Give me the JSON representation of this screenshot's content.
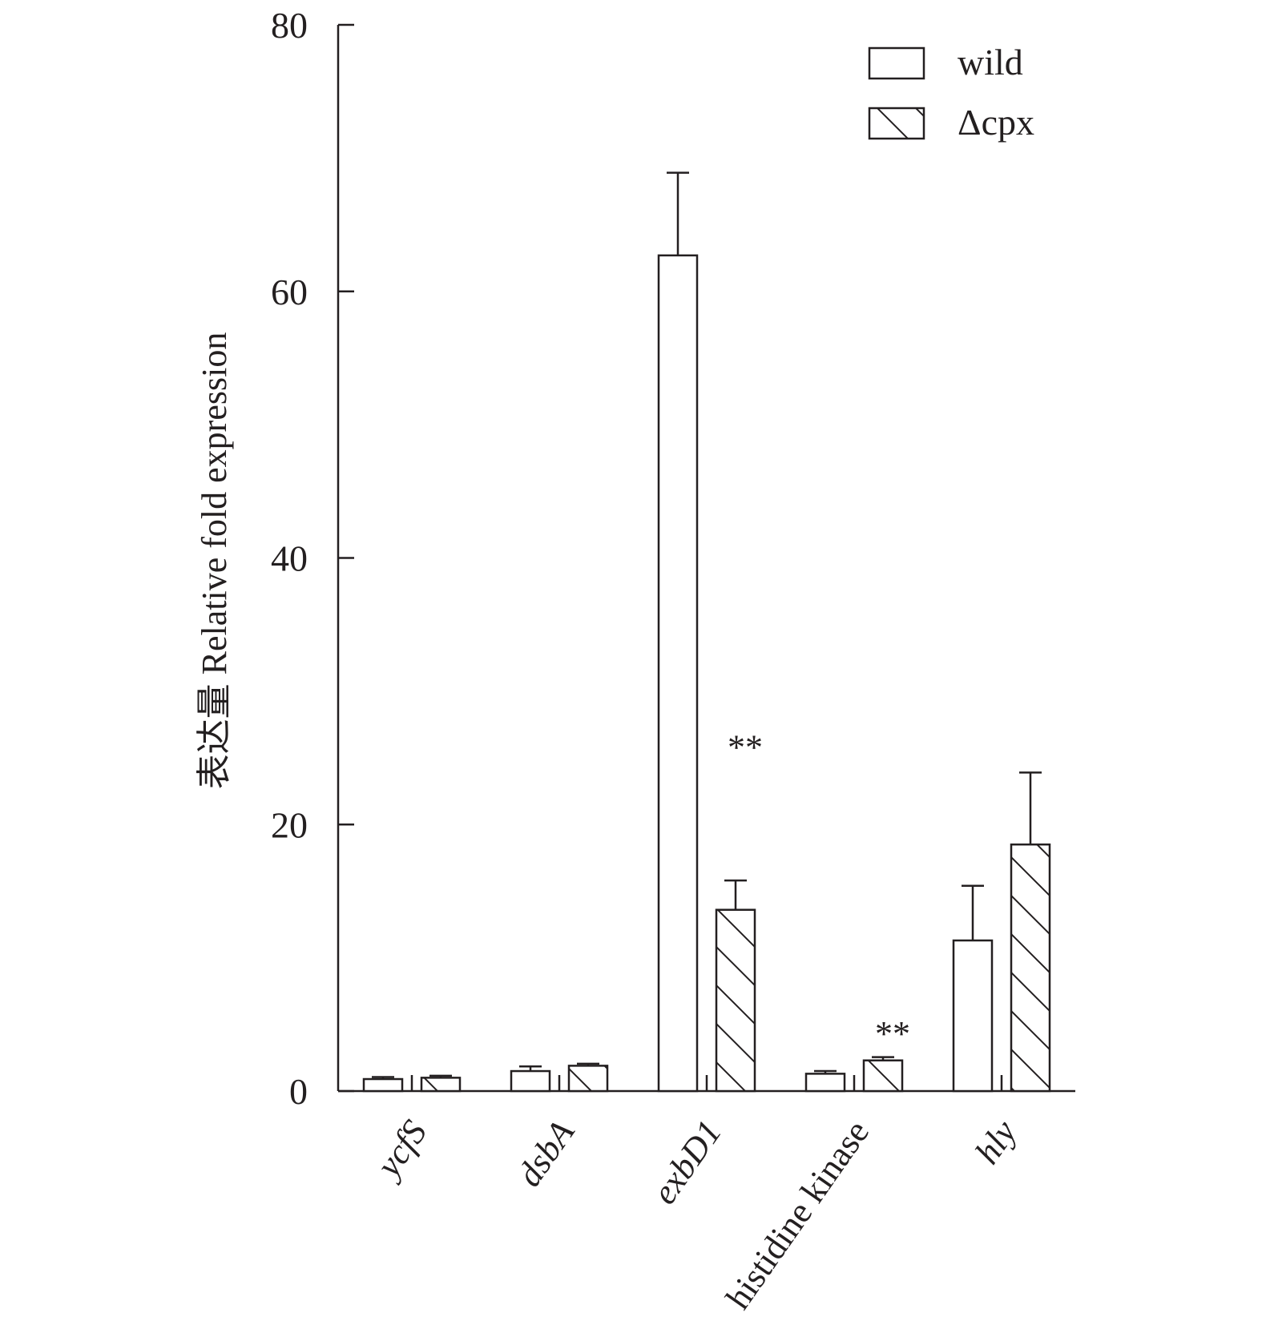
{
  "chart_data": {
    "type": "bar",
    "title": "",
    "xlabel": "",
    "ylabel": "表达量 Relative fold expression",
    "ylim": [
      0,
      80
    ],
    "yticks": [
      0,
      20,
      40,
      60,
      80
    ],
    "grid": false,
    "legend_position": "top-right",
    "categories": [
      "ycfS",
      "dsbA",
      "exbD1",
      "histidine kinase",
      "hly"
    ],
    "category_italic": [
      true,
      true,
      true,
      false,
      true
    ],
    "series": [
      {
        "name": "wild",
        "pattern": "open",
        "values": [
          0.9,
          1.5,
          62.7,
          1.3,
          11.3
        ],
        "errors": [
          0.15,
          0.35,
          6.2,
          0.2,
          4.1
        ]
      },
      {
        "name": "Δcpx",
        "pattern": "hatched",
        "values": [
          1.0,
          1.9,
          13.6,
          2.3,
          18.5
        ],
        "errors": [
          0.15,
          0.15,
          2.2,
          0.25,
          5.4
        ]
      }
    ],
    "annotations": [
      {
        "category": "exbD1",
        "series": "Δcpx",
        "text": "**",
        "at_value": 26
      },
      {
        "category": "histidine kinase",
        "series": "Δcpx",
        "text": "**",
        "at_value": 4.5
      }
    ],
    "colors": {
      "ink": "#231f20",
      "fill": "#ffffff"
    }
  }
}
